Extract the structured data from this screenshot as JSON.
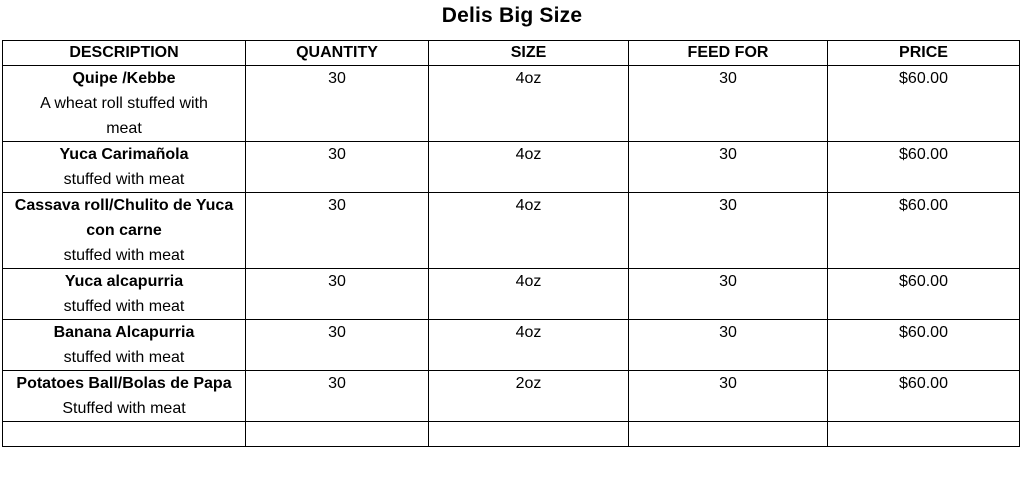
{
  "title": "Delis Big Size",
  "headers": {
    "description": "DESCRIPTION",
    "quantity": "QUANTITY",
    "size": "SIZE",
    "feed_for": "FEED FOR",
    "price": "PRICE"
  },
  "rows": [
    {
      "name": "Quipe /Kebbe",
      "desc": "A wheat roll stuffed with meat",
      "quantity": "30",
      "size": "4oz",
      "feed_for": "30",
      "price": "$60.00"
    },
    {
      "name": "Yuca Carimañola",
      "desc": "stuffed with meat",
      "quantity": "30",
      "size": "4oz",
      "feed_for": "30",
      "price": "$60.00"
    },
    {
      "name": "Cassava roll/Chulito de Yuca con carne",
      "desc": "stuffed with meat",
      "quantity": "30",
      "size": "4oz",
      "feed_for": "30",
      "price": "$60.00"
    },
    {
      "name": "Yuca alcapurria",
      "desc": "stuffed with meat",
      "quantity": "30",
      "size": "4oz",
      "feed_for": "30",
      "price": "$60.00"
    },
    {
      "name": "Banana  Alcapurria",
      "desc": "stuffed with  meat",
      "quantity": "30",
      "size": "4oz",
      "feed_for": "30",
      "price": "$60.00"
    },
    {
      "name": "Potatoes Ball/Bolas de Papa",
      "desc": "Stuffed with meat",
      "quantity": "30",
      "size": "2oz",
      "feed_for": "30",
      "price": "$60.00"
    }
  ]
}
